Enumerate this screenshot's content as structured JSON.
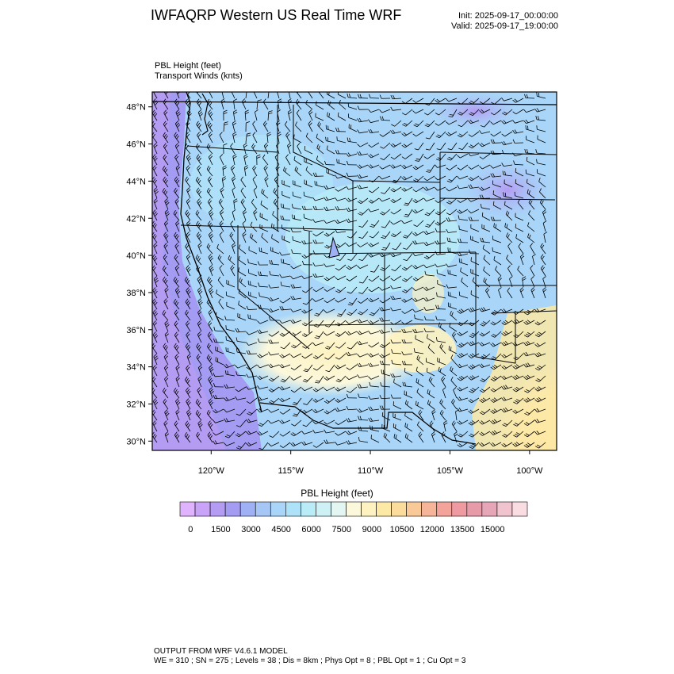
{
  "header": {
    "title": "IWFAQRP Western US Real Time WRF",
    "init": "Init: 2025-09-17_00:00:00",
    "valid": "Valid: 2025-09-17_19:00:00"
  },
  "fields": {
    "line1": "PBL Height   (feet)",
    "line2": "Transport Winds   (knts)"
  },
  "map": {
    "lat_labels": [
      "48°N",
      "46°N",
      "44°N",
      "42°N",
      "40°N",
      "38°N",
      "36°N",
      "34°N",
      "32°N",
      "30°N"
    ],
    "lon_labels": [
      "120°W",
      "115°W",
      "110°W",
      "105°W",
      "100°W"
    ],
    "lat_values": [
      48,
      46,
      44,
      42,
      40,
      38,
      36,
      34,
      32,
      30
    ],
    "lon_values": [
      -120,
      -115,
      -110,
      -105,
      -100
    ],
    "lon_range": [
      -123.7,
      -98.3
    ],
    "lat_range": [
      29.5,
      48.8
    ]
  },
  "colorbar": {
    "title": "PBL Height  (feet)",
    "labels": [
      "0",
      "1500",
      "3000",
      "4500",
      "6000",
      "7500",
      "9000",
      "10500",
      "12000",
      "13500",
      "15000"
    ],
    "colors": [
      "#e0b3ff",
      "#c9a3f7",
      "#b49cf2",
      "#a39cf2",
      "#9fb1f4",
      "#a6c6f6",
      "#a9d6f8",
      "#aee2f8",
      "#b9ecf7",
      "#cdf1f5",
      "#e4f6f2",
      "#fbf8dc",
      "#fdf2c0",
      "#fde9a6",
      "#fcdc9a",
      "#f9c998",
      "#f6b598",
      "#f4a39a",
      "#ef9aa0",
      "#e79aa8",
      "#e6a6b8",
      "#f0c3cf",
      "#fadde3"
    ]
  },
  "footer": {
    "line1": "OUTPUT FROM WRF V4.6.1 MODEL",
    "line2": "WE = 310 ; SN = 275 ; Levels = 38 ; Dis = 8km ; Phys Opt = 8 ; PBL Opt = 1 ; Cu Opt = 3"
  }
}
